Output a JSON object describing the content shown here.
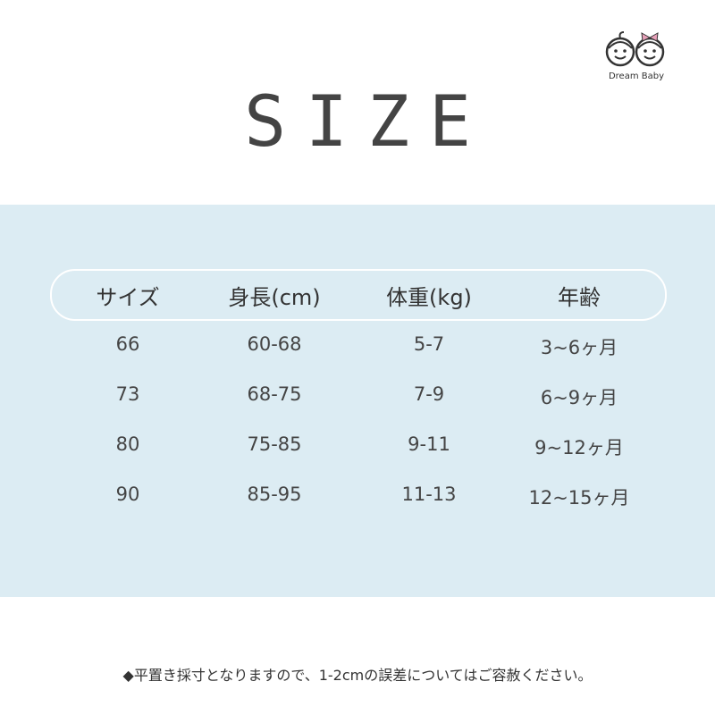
{
  "title": "SIZE",
  "logo": {
    "text": "Dream Baby"
  },
  "table": {
    "headers": [
      "サイズ",
      "身長(cm)",
      "体重(kg)",
      "年齢"
    ],
    "rows": [
      [
        "66",
        "60-68",
        "5-7",
        "3~6ヶ月"
      ],
      [
        "73",
        "68-75",
        "7-9",
        "6~9ヶ月"
      ],
      [
        "80",
        "75-85",
        "9-11",
        "9~12ヶ月"
      ],
      [
        "90",
        "85-95",
        "11-13",
        "12~15ヶ月"
      ]
    ]
  },
  "footer": "◆平置き採寸となりますので、1-2cmの誤差についてはご容赦ください。",
  "colors": {
    "panel": "#dcecf3",
    "bow": "#e6a0b8"
  }
}
